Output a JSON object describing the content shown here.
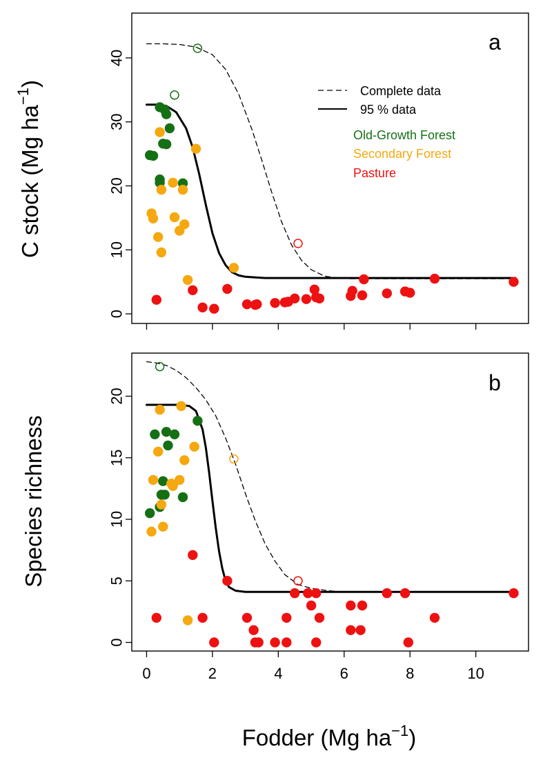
{
  "figure": {
    "xlabel_main": "Fodder (Mg ha",
    "xlabel_sup": "−1",
    "xlabel_close": ")"
  },
  "panels": {
    "a": {
      "tag": "a",
      "ylabel_main": "C stock (Mg ha",
      "ylabel_sup": "−1",
      "ylabel_close": ")"
    },
    "b": {
      "tag": "b",
      "ylabel": "Species richness"
    }
  },
  "legend": {
    "complete": "Complete data",
    "p95": "95 % data",
    "ogf": "Old-Growth Forest",
    "sf": "Secondary Forest",
    "pasture": "Pasture"
  },
  "colors": {
    "ogf": "#157015",
    "sf": "#f5a810",
    "pasture": "#ee1111",
    "line": "#000000"
  },
  "chart_data": [
    {
      "type": "scatter",
      "panel": "a",
      "xlabel": "Fodder (Mg ha−1)",
      "ylabel": "C stock (Mg ha−1)",
      "xlim": [
        -0.45,
        11.6
      ],
      "ylim": [
        -1.5,
        47
      ],
      "xticks": [
        0,
        2,
        4,
        6,
        8,
        10
      ],
      "yticks": [
        0,
        10,
        20,
        30,
        40
      ],
      "series": [
        {
          "name": "Old-Growth Forest",
          "color": "ogf",
          "points": [
            [
              0.1,
              24.8
            ],
            [
              0.2,
              24.7
            ],
            [
              0.4,
              21.0
            ],
            [
              0.4,
              20.5
            ],
            [
              0.4,
              32.3
            ],
            [
              0.5,
              26.6
            ],
            [
              0.55,
              31.9
            ],
            [
              0.6,
              31.2
            ],
            [
              0.6,
              26.5
            ],
            [
              0.7,
              29.0
            ],
            [
              1.1,
              20.4
            ]
          ]
        },
        {
          "name": "Secondary Forest",
          "color": "sf",
          "points": [
            [
              0.15,
              15.7
            ],
            [
              0.2,
              14.9
            ],
            [
              0.35,
              12.0
            ],
            [
              0.4,
              28.4
            ],
            [
              0.45,
              19.4
            ],
            [
              0.45,
              9.6
            ],
            [
              0.8,
              20.5
            ],
            [
              0.85,
              15.1
            ],
            [
              1.0,
              13.0
            ],
            [
              1.1,
              19.4
            ],
            [
              1.15,
              14.0
            ],
            [
              1.25,
              5.3
            ],
            [
              1.5,
              25.8
            ],
            [
              2.65,
              7.2
            ]
          ]
        },
        {
          "name": "Pasture",
          "color": "pasture",
          "points": [
            [
              0.3,
              2.2
            ],
            [
              1.4,
              3.7
            ],
            [
              1.7,
              1.0
            ],
            [
              2.05,
              0.8
            ],
            [
              2.45,
              3.9
            ],
            [
              3.05,
              1.5
            ],
            [
              3.3,
              1.4
            ],
            [
              3.35,
              1.5
            ],
            [
              3.9,
              1.7
            ],
            [
              4.2,
              1.8
            ],
            [
              4.3,
              1.9
            ],
            [
              4.5,
              2.4
            ],
            [
              4.85,
              2.3
            ],
            [
              5.1,
              3.8
            ],
            [
              5.15,
              2.6
            ],
            [
              5.25,
              2.4
            ],
            [
              6.2,
              2.8
            ],
            [
              6.25,
              3.6
            ],
            [
              6.55,
              2.9
            ],
            [
              6.6,
              5.4
            ],
            [
              7.3,
              3.2
            ],
            [
              7.85,
              3.5
            ],
            [
              8.0,
              3.3
            ],
            [
              8.75,
              5.5
            ],
            [
              11.15,
              5.0
            ]
          ]
        },
        {
          "name": "Old-Growth Forest (outlier)",
          "color": "ogf",
          "open": true,
          "points": [
            [
              0.85,
              34.2
            ],
            [
              1.55,
              41.5
            ]
          ]
        },
        {
          "name": "Pasture (outlier)",
          "color": "pasture",
          "open": true,
          "points": [
            [
              4.6,
              11.0
            ]
          ]
        }
      ],
      "curves": [
        {
          "name": "Complete data",
          "style": "dashed",
          "x": [
            0,
            0.5,
            1.0,
            1.5,
            2.0,
            2.4,
            2.8,
            3.2,
            3.5,
            3.8,
            4.1,
            4.4,
            4.7,
            5.0,
            5.4,
            5.8,
            6.2,
            7,
            8,
            9,
            10,
            11.2
          ],
          "y": [
            42.2,
            42.2,
            42.1,
            41.7,
            40.5,
            38.2,
            34.3,
            28.8,
            24.0,
            19.0,
            14.4,
            10.8,
            8.4,
            6.9,
            5.9,
            5.6,
            5.5,
            5.5,
            5.5,
            5.5,
            5.5,
            5.5
          ]
        },
        {
          "name": "95 % data",
          "style": "solid",
          "x": [
            0,
            0.3,
            0.6,
            0.9,
            1.2,
            1.4,
            1.6,
            1.8,
            2.0,
            2.2,
            2.4,
            2.6,
            2.8,
            3.0,
            3.3,
            3.6,
            4,
            5,
            6,
            7,
            8,
            9,
            10,
            11.2
          ],
          "y": [
            32.7,
            32.7,
            32.5,
            31.5,
            29.0,
            26.0,
            21.8,
            17.0,
            12.6,
            9.5,
            7.6,
            6.5,
            6.0,
            5.8,
            5.7,
            5.6,
            5.6,
            5.6,
            5.6,
            5.6,
            5.6,
            5.6,
            5.6,
            5.6
          ]
        }
      ]
    },
    {
      "type": "scatter",
      "panel": "b",
      "xlabel": "Fodder (Mg ha−1)",
      "ylabel": "Species richness",
      "xlim": [
        -0.45,
        11.6
      ],
      "ylim": [
        -0.7,
        23.5
      ],
      "xticks": [
        0,
        2,
        4,
        6,
        8,
        10
      ],
      "yticks": [
        0,
        5,
        10,
        15,
        20
      ],
      "series": [
        {
          "name": "Old-Growth Forest",
          "color": "ogf",
          "points": [
            [
              0.1,
              10.5
            ],
            [
              0.25,
              16.9
            ],
            [
              0.4,
              11.0
            ],
            [
              0.45,
              12.0
            ],
            [
              0.5,
              13.1
            ],
            [
              0.55,
              12.0
            ],
            [
              0.6,
              17.1
            ],
            [
              0.65,
              16.0
            ],
            [
              0.8,
              12.8
            ],
            [
              0.85,
              16.9
            ],
            [
              1.1,
              11.8
            ],
            [
              1.55,
              18.0
            ]
          ]
        },
        {
          "name": "Secondary Forest",
          "color": "sf",
          "points": [
            [
              0.15,
              9.0
            ],
            [
              0.2,
              13.2
            ],
            [
              0.35,
              15.5
            ],
            [
              0.4,
              18.9
            ],
            [
              0.45,
              11.2
            ],
            [
              0.5,
              9.4
            ],
            [
              0.75,
              12.9
            ],
            [
              0.8,
              12.7
            ],
            [
              1.0,
              13.2
            ],
            [
              1.05,
              19.2
            ],
            [
              1.15,
              14.8
            ],
            [
              1.25,
              1.8
            ],
            [
              1.45,
              15.9
            ]
          ]
        },
        {
          "name": "Pasture",
          "color": "pasture",
          "points": [
            [
              0.3,
              2.0
            ],
            [
              1.4,
              7.1
            ],
            [
              1.7,
              2.0
            ],
            [
              2.05,
              0.0
            ],
            [
              2.45,
              5.0
            ],
            [
              3.05,
              2.0
            ],
            [
              3.25,
              1.0
            ],
            [
              3.3,
              0.0
            ],
            [
              3.4,
              0.0
            ],
            [
              3.9,
              0.0
            ],
            [
              4.25,
              2.0
            ],
            [
              4.25,
              0.0
            ],
            [
              4.5,
              4.0
            ],
            [
              4.9,
              4.0
            ],
            [
              5.0,
              3.0
            ],
            [
              5.15,
              4.0
            ],
            [
              5.15,
              0.0
            ],
            [
              5.25,
              2.0
            ],
            [
              6.2,
              3.0
            ],
            [
              6.2,
              1.0
            ],
            [
              6.55,
              3.0
            ],
            [
              6.5,
              1.0
            ],
            [
              7.3,
              4.0
            ],
            [
              7.85,
              4.0
            ],
            [
              7.95,
              0.0
            ],
            [
              8.75,
              2.0
            ],
            [
              11.15,
              4.0
            ]
          ]
        },
        {
          "name": "Old-Growth Forest (outlier)",
          "color": "ogf",
          "open": true,
          "points": [
            [
              0.4,
              22.4
            ]
          ]
        },
        {
          "name": "Secondary Forest (outlier)",
          "color": "sf",
          "open": true,
          "points": [
            [
              2.65,
              14.9
            ]
          ]
        },
        {
          "name": "Pasture (outlier)",
          "color": "pasture",
          "open": true,
          "points": [
            [
              4.6,
              5.0
            ]
          ]
        }
      ],
      "curves": [
        {
          "name": "Complete data",
          "style": "dashed",
          "x": [
            0,
            0.3,
            0.6,
            0.9,
            1.2,
            1.5,
            1.8,
            2.1,
            2.4,
            2.7,
            3.0,
            3.3,
            3.6,
            3.9,
            4.2,
            4.6,
            5.0,
            5.5,
            6,
            7,
            8,
            9,
            10,
            11.2
          ],
          "y": [
            22.8,
            22.7,
            22.5,
            22.1,
            21.5,
            20.7,
            19.7,
            18.4,
            16.6,
            14.5,
            12.1,
            9.9,
            8.0,
            6.6,
            5.5,
            4.7,
            4.4,
            4.2,
            4.1,
            4.1,
            4.1,
            4.1,
            4.1,
            4.1
          ]
        },
        {
          "name": "95 % data",
          "style": "solid",
          "x": [
            0,
            0.5,
            1.0,
            1.3,
            1.5,
            1.7,
            1.8,
            1.9,
            2.0,
            2.1,
            2.2,
            2.3,
            2.4,
            2.5,
            2.7,
            3.0,
            3.5,
            4,
            5,
            6,
            7,
            8,
            9,
            10,
            11.2
          ],
          "y": [
            19.3,
            19.3,
            19.3,
            19.2,
            18.8,
            17.3,
            15.8,
            13.8,
            11.5,
            9.3,
            7.4,
            6.0,
            5.0,
            4.5,
            4.2,
            4.1,
            4.1,
            4.1,
            4.1,
            4.1,
            4.1,
            4.1,
            4.1,
            4.1,
            4.1
          ]
        }
      ]
    }
  ]
}
